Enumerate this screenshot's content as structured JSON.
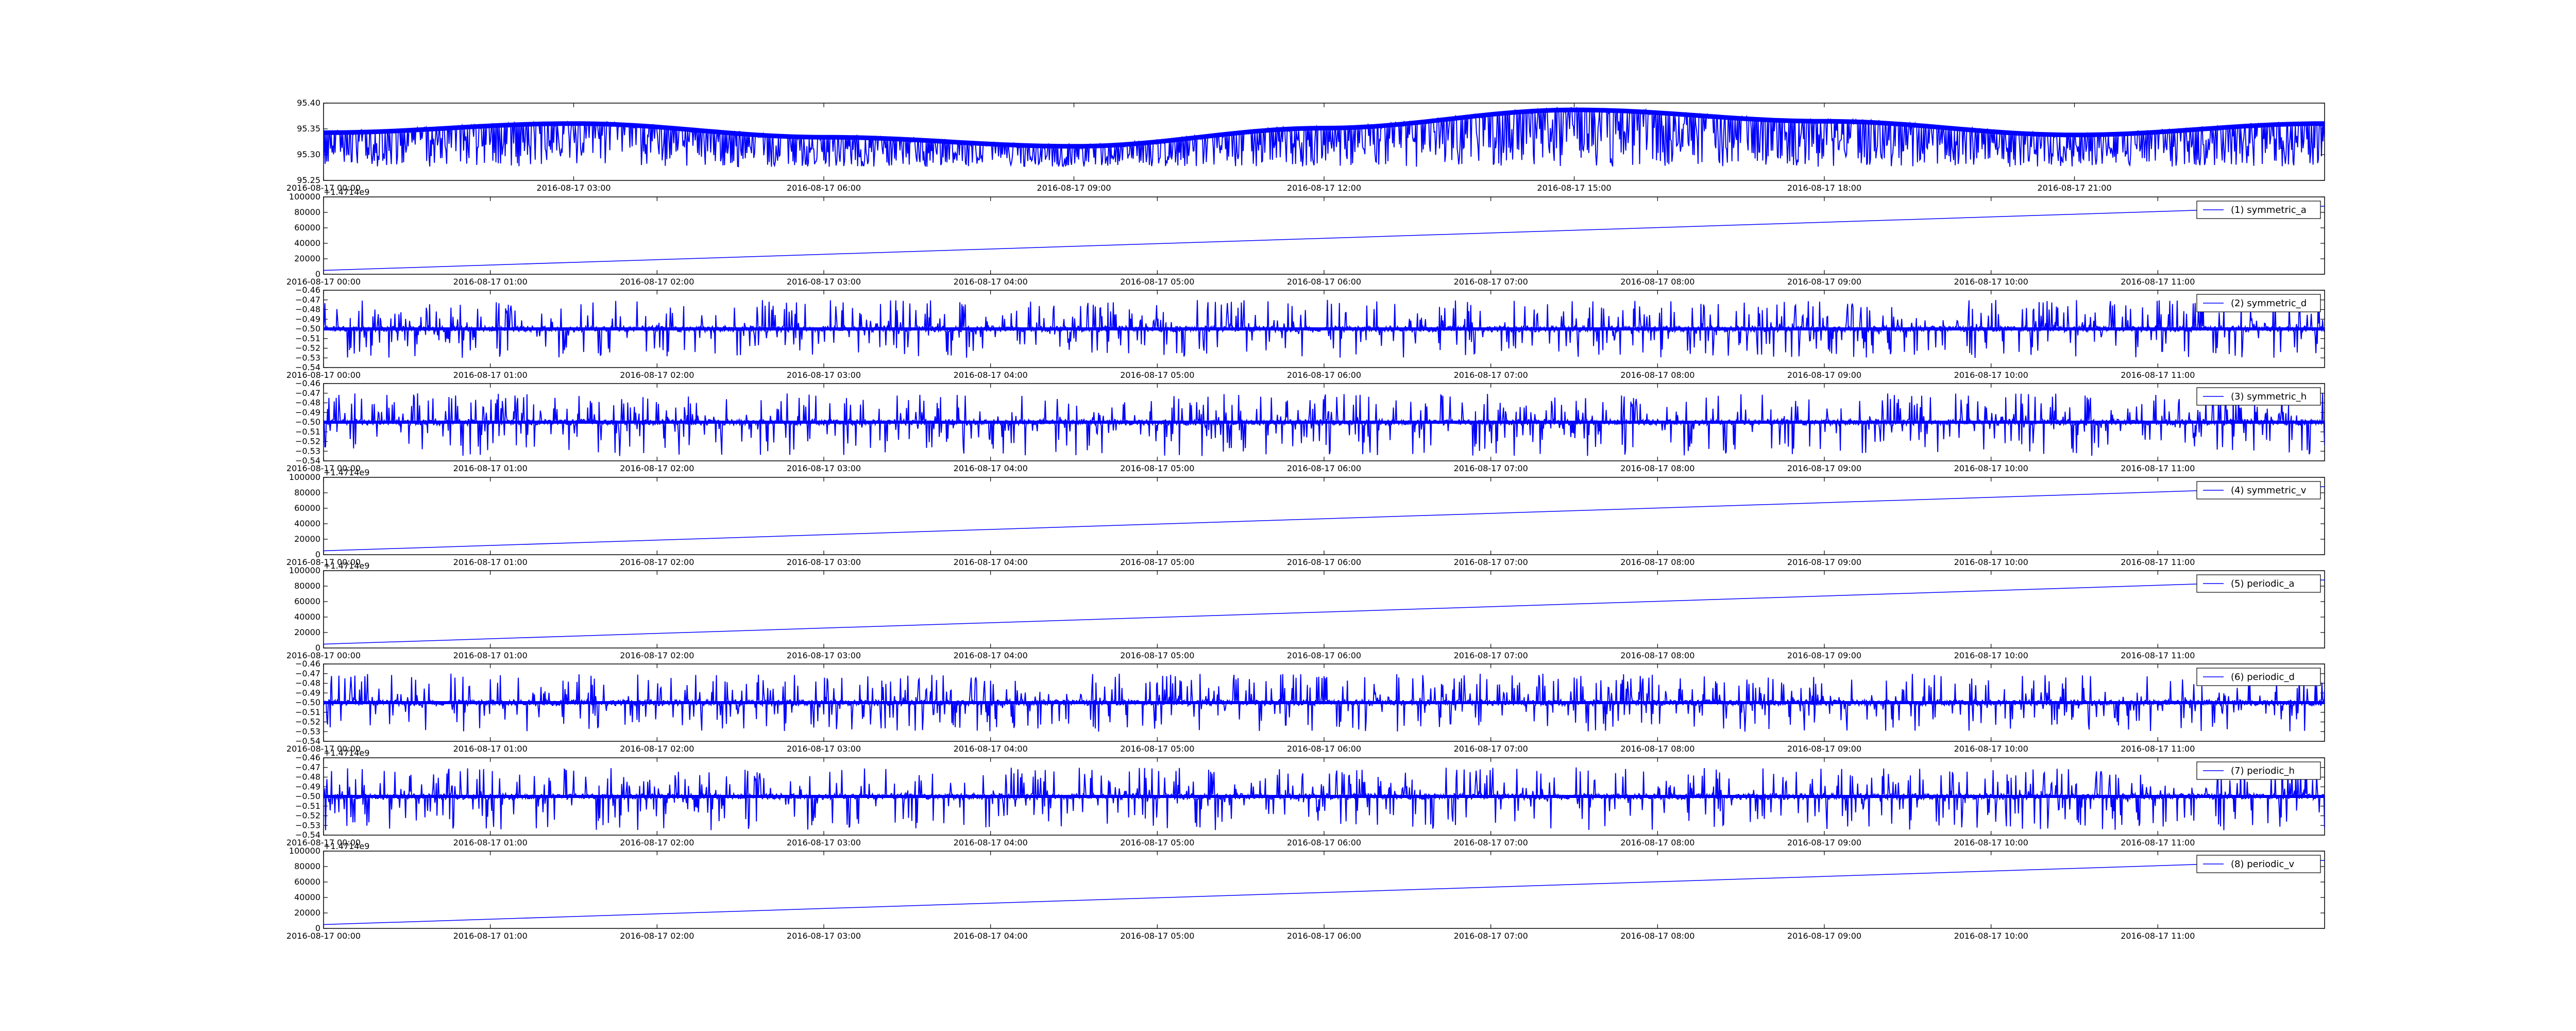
{
  "chart_data": [
    {
      "type": "line",
      "title": "",
      "xlabel": "",
      "ylabel": "",
      "x_ticks": [
        "2016-08-17 00:00",
        "2016-08-17 03:00",
        "2016-08-17 06:00",
        "2016-08-17 09:00",
        "2016-08-17 12:00",
        "2016-08-17 15:00",
        "2016-08-17 18:00",
        "2016-08-17 21:00"
      ],
      "y_ticks": [
        "95.40",
        "95.35",
        "95.30",
        "95.25"
      ],
      "ylim": [
        95.23,
        95.4
      ],
      "x_range_hours": [
        0,
        24
      ],
      "series": [
        {
          "color": "#0000ff",
          "pattern": "dense_spikes_down",
          "x": [
            0,
            3,
            6,
            9,
            12,
            15,
            18,
            21,
            24
          ],
          "baseline": [
            95.335,
            95.355,
            95.325,
            95.305,
            95.345,
            95.385,
            95.36,
            95.33,
            95.355
          ],
          "spike_min": 95.26
        }
      ]
    },
    {
      "type": "line",
      "title": "",
      "xlabel": "",
      "ylabel": "",
      "offset_label": "+1.4714e9",
      "x_ticks": [
        "2016-08-17 00:00",
        "2016-08-17 01:00",
        "2016-08-17 02:00",
        "2016-08-17 03:00",
        "2016-08-17 04:00",
        "2016-08-17 05:00",
        "2016-08-17 06:00",
        "2016-08-17 07:00",
        "2016-08-17 08:00",
        "2016-08-17 09:00",
        "2016-08-17 10:00",
        "2016-08-17 11:00"
      ],
      "y_ticks": [
        "100000",
        "80000",
        "60000",
        "40000",
        "20000",
        "0"
      ],
      "ylim": [
        0,
        100000
      ],
      "x_range_hours": [
        0,
        12
      ],
      "legend": {
        "label": "(1) symmetric_a",
        "placement": "upper right"
      },
      "series": [
        {
          "name": "(1) symmetric_a",
          "color": "#0000ff",
          "pattern": "linear",
          "x": [
            0,
            12
          ],
          "y": [
            5000,
            88000
          ]
        }
      ]
    },
    {
      "type": "line",
      "title": "",
      "xlabel": "",
      "ylabel": "",
      "x_ticks": [
        "2016-08-17 00:00",
        "2016-08-17 01:00",
        "2016-08-17 02:00",
        "2016-08-17 03:00",
        "2016-08-17 04:00",
        "2016-08-17 05:00",
        "2016-08-17 06:00",
        "2016-08-17 07:00",
        "2016-08-17 08:00",
        "2016-08-17 09:00",
        "2016-08-17 10:00",
        "2016-08-17 11:00"
      ],
      "y_ticks": [
        "−0.46",
        "−0.47",
        "−0.48",
        "−0.49",
        "−0.50",
        "−0.51",
        "−0.52",
        "−0.53",
        "−0.54"
      ],
      "ylim": [
        -0.54,
        -0.46
      ],
      "x_range_hours": [
        0,
        12
      ],
      "legend": {
        "label": "(2) symmetric_d",
        "placement": "upper right"
      },
      "series": [
        {
          "name": "(2) symmetric_d",
          "color": "#0000ff",
          "pattern": "noise",
          "center": -0.5,
          "spike_high": -0.47,
          "spike_low": -0.53
        }
      ]
    },
    {
      "type": "line",
      "title": "",
      "xlabel": "",
      "ylabel": "",
      "x_ticks": [
        "2016-08-17 00:00",
        "2016-08-17 01:00",
        "2016-08-17 02:00",
        "2016-08-17 03:00",
        "2016-08-17 04:00",
        "2016-08-17 05:00",
        "2016-08-17 06:00",
        "2016-08-17 07:00",
        "2016-08-17 08:00",
        "2016-08-17 09:00",
        "2016-08-17 10:00",
        "2016-08-17 11:00"
      ],
      "y_ticks": [
        "−0.46",
        "−0.47",
        "−0.48",
        "−0.49",
        "−0.50",
        "−0.51",
        "−0.52",
        "−0.53",
        "−0.54"
      ],
      "ylim": [
        -0.54,
        -0.46
      ],
      "x_range_hours": [
        0,
        12
      ],
      "legend": {
        "label": "(3) symmetric_h",
        "placement": "upper right"
      },
      "series": [
        {
          "name": "(3) symmetric_h",
          "color": "#0000ff",
          "pattern": "noise",
          "center": -0.5,
          "spike_high": -0.47,
          "spike_low": -0.535
        }
      ]
    },
    {
      "type": "line",
      "title": "",
      "xlabel": "",
      "ylabel": "",
      "offset_label": "+1.4714e9",
      "x_ticks": [
        "2016-08-17 00:00",
        "2016-08-17 01:00",
        "2016-08-17 02:00",
        "2016-08-17 03:00",
        "2016-08-17 04:00",
        "2016-08-17 05:00",
        "2016-08-17 06:00",
        "2016-08-17 07:00",
        "2016-08-17 08:00",
        "2016-08-17 09:00",
        "2016-08-17 10:00",
        "2016-08-17 11:00"
      ],
      "y_ticks": [
        "100000",
        "80000",
        "60000",
        "40000",
        "20000",
        "0"
      ],
      "ylim": [
        0,
        100000
      ],
      "x_range_hours": [
        0,
        12
      ],
      "legend": {
        "label": "(4) symmetric_v",
        "placement": "upper right"
      },
      "series": [
        {
          "name": "(4) symmetric_v",
          "color": "#0000ff",
          "pattern": "linear",
          "x": [
            0,
            12
          ],
          "y": [
            5000,
            88000
          ]
        }
      ]
    },
    {
      "type": "line",
      "title": "",
      "xlabel": "",
      "ylabel": "",
      "offset_label": "+1.4714e9",
      "x_ticks": [
        "2016-08-17 00:00",
        "2016-08-17 01:00",
        "2016-08-17 02:00",
        "2016-08-17 03:00",
        "2016-08-17 04:00",
        "2016-08-17 05:00",
        "2016-08-17 06:00",
        "2016-08-17 07:00",
        "2016-08-17 08:00",
        "2016-08-17 09:00",
        "2016-08-17 10:00",
        "2016-08-17 11:00"
      ],
      "y_ticks": [
        "100000",
        "80000",
        "60000",
        "40000",
        "20000",
        "0"
      ],
      "ylim": [
        0,
        100000
      ],
      "x_range_hours": [
        0,
        12
      ],
      "legend": {
        "label": "(5) periodic_a",
        "placement": "upper right"
      },
      "series": [
        {
          "name": "(5) periodic_a",
          "color": "#0000ff",
          "pattern": "linear",
          "x": [
            0,
            12
          ],
          "y": [
            5000,
            88000
          ]
        }
      ]
    },
    {
      "type": "line",
      "title": "",
      "xlabel": "",
      "ylabel": "",
      "x_ticks": [
        "2016-08-17 00:00",
        "2016-08-17 01:00",
        "2016-08-17 02:00",
        "2016-08-17 03:00",
        "2016-08-17 04:00",
        "2016-08-17 05:00",
        "2016-08-17 06:00",
        "2016-08-17 07:00",
        "2016-08-17 08:00",
        "2016-08-17 09:00",
        "2016-08-17 10:00",
        "2016-08-17 11:00"
      ],
      "y_ticks": [
        "−0.46",
        "−0.47",
        "−0.48",
        "−0.49",
        "−0.50",
        "−0.51",
        "−0.52",
        "−0.53",
        "−0.54"
      ],
      "ylim": [
        -0.54,
        -0.46
      ],
      "x_range_hours": [
        0,
        12
      ],
      "legend": {
        "label": "(6) periodic_d",
        "placement": "upper right"
      },
      "series": [
        {
          "name": "(6) periodic_d",
          "color": "#0000ff",
          "pattern": "noise",
          "center": -0.5,
          "spike_high": -0.47,
          "spike_low": -0.53
        }
      ]
    },
    {
      "type": "line",
      "title": "",
      "xlabel": "",
      "ylabel": "",
      "offset_label": "+1.4714e9",
      "x_ticks": [
        "2016-08-17 00:00",
        "2016-08-17 01:00",
        "2016-08-17 02:00",
        "2016-08-17 03:00",
        "2016-08-17 04:00",
        "2016-08-17 05:00",
        "2016-08-17 06:00",
        "2016-08-17 07:00",
        "2016-08-17 08:00",
        "2016-08-17 09:00",
        "2016-08-17 10:00",
        "2016-08-17 11:00"
      ],
      "y_ticks": [
        "−0.46",
        "−0.47",
        "−0.48",
        "−0.49",
        "−0.50",
        "−0.51",
        "−0.52",
        "−0.53",
        "−0.54"
      ],
      "ylim": [
        -0.54,
        -0.46
      ],
      "x_range_hours": [
        0,
        12
      ],
      "legend": {
        "label": "(7) periodic_h",
        "placement": "upper right"
      },
      "series": [
        {
          "name": "(7) periodic_h",
          "color": "#0000ff",
          "pattern": "noise",
          "center": -0.5,
          "spike_high": -0.47,
          "spike_low": -0.535
        }
      ]
    },
    {
      "type": "line",
      "title": "",
      "xlabel": "",
      "ylabel": "",
      "offset_label": "+1.4714e9",
      "x_ticks": [
        "2016-08-17 00:00",
        "2016-08-17 01:00",
        "2016-08-17 02:00",
        "2016-08-17 03:00",
        "2016-08-17 04:00",
        "2016-08-17 05:00",
        "2016-08-17 06:00",
        "2016-08-17 07:00",
        "2016-08-17 08:00",
        "2016-08-17 09:00",
        "2016-08-17 10:00",
        "2016-08-17 11:00"
      ],
      "y_ticks": [
        "100000",
        "80000",
        "60000",
        "40000",
        "20000",
        "0"
      ],
      "ylim": [
        0,
        100000
      ],
      "x_range_hours": [
        0,
        12
      ],
      "legend": {
        "label": "(8) periodic_v",
        "placement": "upper right"
      },
      "series": [
        {
          "name": "(8) periodic_v",
          "color": "#0000ff",
          "pattern": "linear",
          "x": [
            0,
            12
          ],
          "y": [
            5000,
            88000
          ]
        }
      ]
    }
  ]
}
